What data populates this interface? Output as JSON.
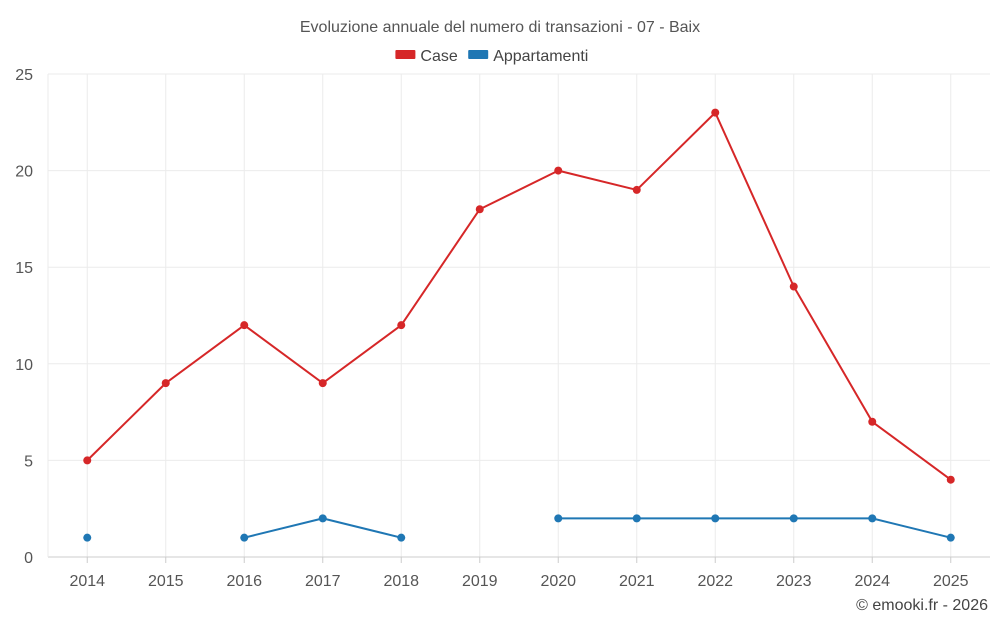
{
  "chart_data": {
    "type": "line",
    "title": "Evoluzione annuale del numero di transazioni - 07 - Baix",
    "xlabel": "",
    "ylabel": "",
    "categories": [
      "2014",
      "2015",
      "2016",
      "2017",
      "2018",
      "2019",
      "2020",
      "2021",
      "2022",
      "2023",
      "2024",
      "2025"
    ],
    "ylim": [
      0,
      25
    ],
    "yticks": [
      0,
      5,
      10,
      15,
      20,
      25
    ],
    "grid": true,
    "legend_position": "top-center",
    "series": [
      {
        "name": "Case",
        "color": "#d62728",
        "values": [
          5,
          9,
          12,
          9,
          12,
          18,
          20,
          19,
          23,
          14,
          7,
          4
        ]
      },
      {
        "name": "Appartamenti",
        "color": "#1f77b4",
        "values": [
          1,
          null,
          1,
          2,
          1,
          null,
          2,
          2,
          2,
          2,
          2,
          1
        ]
      }
    ]
  },
  "credit": "© emooki.fr - 2026"
}
